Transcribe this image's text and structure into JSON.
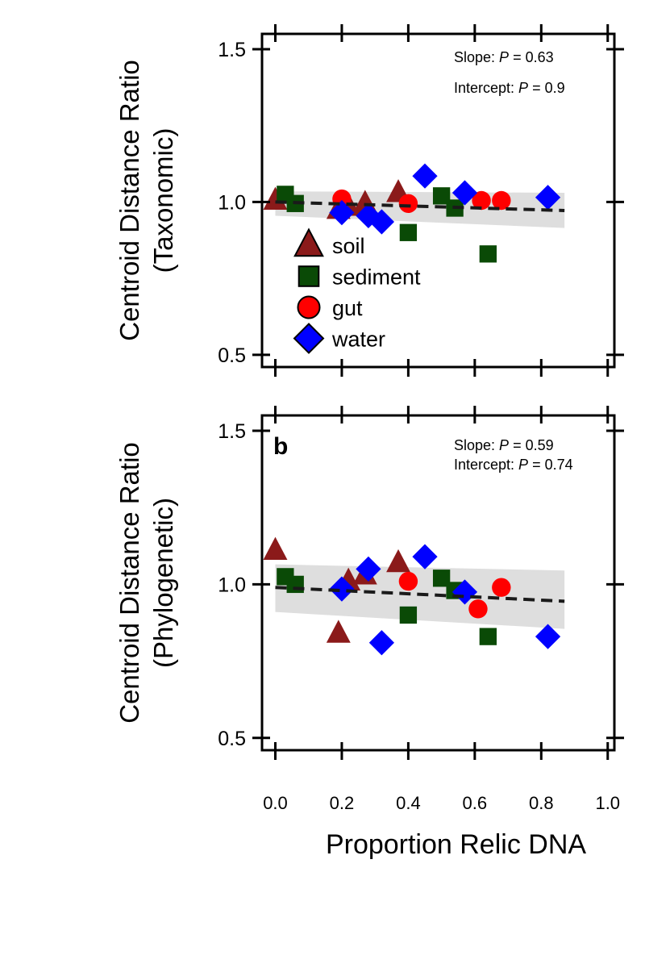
{
  "chart_data": [
    {
      "type": "scatter",
      "panel_label": "",
      "ylabel": [
        "Centroid Distance Ratio",
        "(Taxonomic)"
      ],
      "xlim": [
        -0.04,
        1.02
      ],
      "ylim": [
        0.46,
        1.55
      ],
      "yticks": [
        0.5,
        1.0,
        1.5
      ],
      "ytick_labels": [
        "0.5",
        "1.0",
        "1.5"
      ],
      "xticks": [
        0,
        0.2,
        0.4,
        0.6,
        0.8,
        1.0
      ],
      "annotations": [
        {
          "prefix": "Slope: ",
          "p": "P",
          "suffix": " = 0.63"
        },
        {
          "prefix": "Intercept: ",
          "p": "P",
          "suffix": " = 0.9"
        }
      ],
      "fit": {
        "x": [
          0.0,
          0.87
        ],
        "y": [
          1.0,
          0.972
        ],
        "ci_lower": [
          0.955,
          0.915
        ],
        "ci_upper": [
          1.035,
          1.03
        ]
      },
      "legend": {
        "position": "bottom-left",
        "entries": [
          {
            "label": "soil",
            "group": "soil"
          },
          {
            "label": "sediment",
            "group": "sediment"
          },
          {
            "label": "gut",
            "group": "gut"
          },
          {
            "label": "water",
            "group": "water"
          }
        ]
      },
      "series": [
        {
          "group": "soil",
          "points": [
            [
              0.0,
              1.005
            ],
            [
              0.19,
              0.975
            ],
            [
              0.22,
              0.985
            ],
            [
              0.27,
              0.995
            ],
            [
              0.37,
              1.03
            ]
          ]
        },
        {
          "group": "sediment",
          "points": [
            [
              0.03,
              1.025
            ],
            [
              0.06,
              0.995
            ],
            [
              0.4,
              0.9
            ],
            [
              0.5,
              1.02
            ],
            [
              0.54,
              0.98
            ],
            [
              0.64,
              0.83
            ]
          ]
        },
        {
          "group": "gut",
          "points": [
            [
              0.2,
              1.01
            ],
            [
              0.4,
              0.995
            ],
            [
              0.62,
              1.005
            ],
            [
              0.68,
              1.005
            ]
          ]
        },
        {
          "group": "water",
          "points": [
            [
              0.2,
              0.965
            ],
            [
              0.28,
              0.955
            ],
            [
              0.32,
              0.935
            ],
            [
              0.45,
              1.085
            ],
            [
              0.57,
              1.03
            ],
            [
              0.82,
              1.015
            ]
          ]
        }
      ]
    },
    {
      "type": "scatter",
      "panel_label": "b",
      "ylabel": [
        "Centroid Distance Ratio",
        "(Phylogenetic)"
      ],
      "xlim": [
        -0.04,
        1.02
      ],
      "ylim": [
        0.46,
        1.55
      ],
      "yticks": [
        0.5,
        1.0,
        1.5
      ],
      "ytick_labels": [
        "0.5",
        "1.0",
        "1.5"
      ],
      "xticks": [
        0,
        0.2,
        0.4,
        0.6,
        0.8,
        1.0
      ],
      "xtick_labels": [
        "0.0",
        "0.2",
        "0.4",
        "0.6",
        "0.8",
        "1.0"
      ],
      "xlabel": "Proportion Relic DNA",
      "annotations": [
        {
          "prefix": "Slope: ",
          "p": "P",
          "suffix": " = 0.59"
        },
        {
          "prefix": "Intercept: ",
          "p": "P",
          "suffix": " = 0.74"
        }
      ],
      "fit": {
        "x": [
          0.0,
          0.87
        ],
        "y": [
          0.99,
          0.945
        ],
        "ci_lower": [
          0.91,
          0.855
        ],
        "ci_upper": [
          1.065,
          1.045
        ]
      },
      "series": [
        {
          "group": "soil",
          "points": [
            [
              0.0,
              1.11
            ],
            [
              0.19,
              0.84
            ],
            [
              0.22,
              1.01
            ],
            [
              0.27,
              1.03
            ],
            [
              0.37,
              1.07
            ]
          ]
        },
        {
          "group": "sediment",
          "points": [
            [
              0.03,
              1.025
            ],
            [
              0.06,
              1.0
            ],
            [
              0.4,
              0.9
            ],
            [
              0.5,
              1.02
            ],
            [
              0.54,
              0.98
            ],
            [
              0.64,
              0.83
            ]
          ]
        },
        {
          "group": "gut",
          "points": [
            [
              0.4,
              1.01
            ],
            [
              0.61,
              0.92
            ],
            [
              0.68,
              0.99
            ]
          ]
        },
        {
          "group": "water",
          "points": [
            [
              0.2,
              0.985
            ],
            [
              0.28,
              1.05
            ],
            [
              0.32,
              0.81
            ],
            [
              0.45,
              1.09
            ],
            [
              0.57,
              0.975
            ],
            [
              0.82,
              0.83
            ]
          ]
        }
      ]
    }
  ],
  "styles": {
    "soil": {
      "marker": "triangle",
      "color": "#8b1a1a"
    },
    "sediment": {
      "marker": "square",
      "color": "#0a4a06"
    },
    "gut": {
      "marker": "circle",
      "color": "#ff0000"
    },
    "water": {
      "marker": "diamond",
      "color": "#0000ff"
    },
    "ci_color": "#dedede",
    "fit_color": "#1a1a1a"
  }
}
